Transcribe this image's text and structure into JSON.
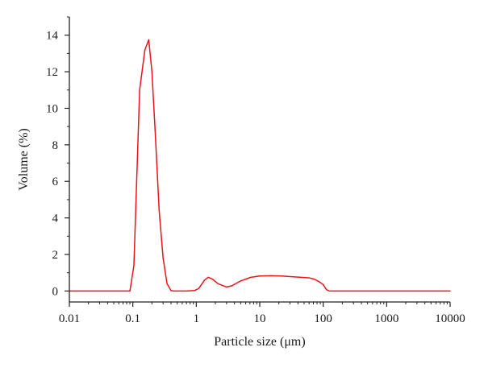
{
  "chart_data": {
    "type": "line",
    "title": "",
    "xlabel": "Particle size (μm)",
    "ylabel": "Volume (%)",
    "x_scale": "log",
    "xlim": [
      0.01,
      10000
    ],
    "ylim": [
      -0.6,
      15
    ],
    "x_ticks": [
      0.01,
      0.1,
      1,
      10,
      100,
      1000,
      10000
    ],
    "x_tick_labels": [
      "0.01",
      "0.1",
      "1",
      "10",
      "100",
      "1000",
      "10000"
    ],
    "y_ticks": [
      0,
      2,
      4,
      6,
      8,
      10,
      12,
      14
    ],
    "y_tick_labels": [
      "0",
      "2",
      "4",
      "6",
      "8",
      "10",
      "12",
      "14"
    ],
    "grid": false,
    "legend": "none",
    "series": [
      {
        "color": "#e8141b",
        "x": [
          0.01,
          0.09,
          0.104,
          0.128,
          0.155,
          0.178,
          0.2,
          0.226,
          0.26,
          0.3,
          0.346,
          0.4,
          0.44,
          0.52,
          0.7,
          0.95,
          1.1,
          1.35,
          1.55,
          1.8,
          2.2,
          3.0,
          3.6,
          5.0,
          7.2,
          10,
          15,
          22,
          32,
          45,
          60,
          72,
          87,
          100,
          112,
          125,
          200,
          1000,
          10000
        ],
        "y": [
          0,
          0,
          1.4,
          11.0,
          13.2,
          13.75,
          12.0,
          8.6,
          4.4,
          1.8,
          0.4,
          0.02,
          0,
          0,
          0,
          0.03,
          0.15,
          0.6,
          0.75,
          0.65,
          0.4,
          0.22,
          0.28,
          0.55,
          0.75,
          0.82,
          0.84,
          0.82,
          0.78,
          0.75,
          0.72,
          0.65,
          0.5,
          0.35,
          0.08,
          0,
          0,
          0,
          0
        ]
      }
    ]
  }
}
